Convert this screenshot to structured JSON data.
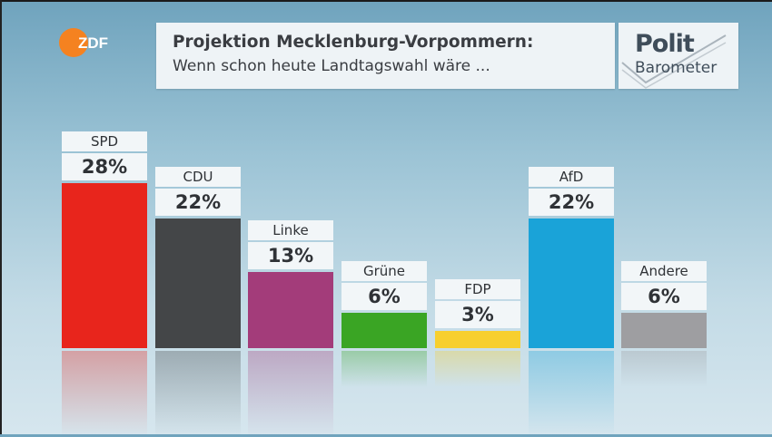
{
  "header": {
    "title": "Projektion Mecklenburg-Vorpommern:",
    "subtitle": "Wenn schon heute Landtagswahl wäre ..."
  },
  "logo": {
    "text": "ZDF"
  },
  "brand": {
    "top": "Polit",
    "bottom": "Barometer"
  },
  "colors": {
    "SPD": "#e8251c",
    "CDU": "#444648",
    "Linke": "#a33c7a",
    "Grüne": "#3aa524",
    "FDP": "#f7cf2e",
    "AfD": "#1aa3d8",
    "Andere": "#9e9ea1"
  },
  "chart_data": {
    "type": "bar",
    "title": "Projektion Mecklenburg-Vorpommern:",
    "subtitle": "Wenn schon heute Landtagswahl wäre ...",
    "categories": [
      "SPD",
      "CDU",
      "Linke",
      "Grüne",
      "FDP",
      "AfD",
      "Andere"
    ],
    "values": [
      28,
      22,
      13,
      6,
      3,
      22,
      6
    ],
    "value_labels": [
      "28%",
      "22%",
      "13%",
      "6%",
      "3%",
      "22%",
      "6%"
    ],
    "ylim": [
      0,
      28
    ],
    "xlabel": "",
    "ylabel": "",
    "grid": false
  }
}
